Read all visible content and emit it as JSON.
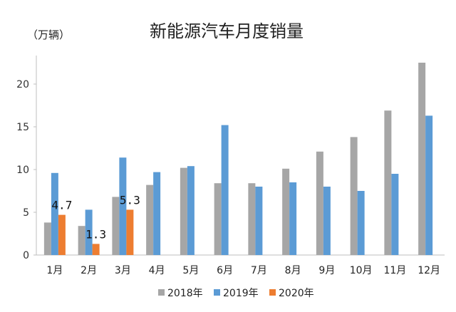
{
  "chart_data": {
    "type": "bar",
    "title": "新能源汽车月度销量",
    "unit_label": "（万辆）",
    "categories": [
      "1月",
      "2月",
      "3月",
      "4月",
      "5月",
      "6月",
      "7月",
      "8月",
      "9月",
      "10月",
      "11月",
      "12月"
    ],
    "series": [
      {
        "name": "2018年",
        "color": "#a6a6a6",
        "values": [
          3.8,
          3.4,
          6.8,
          8.2,
          10.2,
          8.4,
          8.4,
          10.1,
          12.1,
          13.8,
          16.9,
          22.5
        ]
      },
      {
        "name": "2019年",
        "color": "#5b9bd5",
        "values": [
          9.6,
          5.3,
          11.4,
          9.7,
          10.4,
          15.2,
          8.0,
          8.5,
          8.0,
          7.5,
          9.5,
          16.3
        ]
      },
      {
        "name": "2020年",
        "color": "#ed7d31",
        "values": [
          4.7,
          1.3,
          5.3,
          null,
          null,
          null,
          null,
          null,
          null,
          null,
          null,
          null
        ]
      }
    ],
    "data_labels": [
      {
        "category": "1月",
        "series": "2020年",
        "text": "4.7"
      },
      {
        "category": "2月",
        "series": "2020年",
        "text": "1.3"
      },
      {
        "category": "3月",
        "series": "2020年",
        "text": "5.3"
      }
    ],
    "yticks": [
      0,
      5,
      10,
      15,
      20
    ],
    "ylim": [
      0,
      24
    ],
    "grid": false,
    "legend_position": "bottom"
  }
}
